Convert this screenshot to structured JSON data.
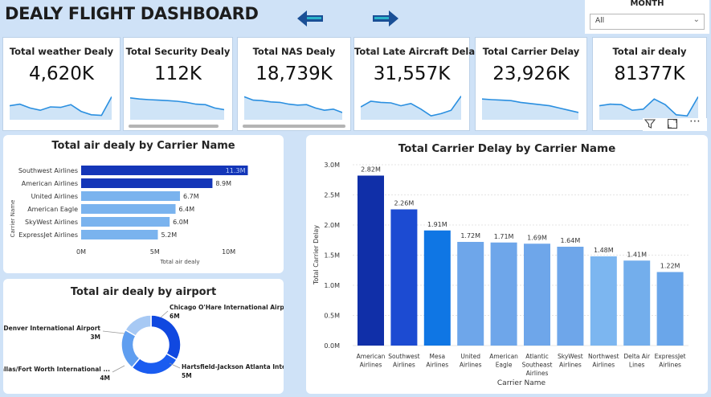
{
  "header": {
    "title": "DEALY FLIGHT DASHBOARD",
    "month_filter": {
      "label": "MONTH",
      "value": "All"
    }
  },
  "colors": {
    "arrow": "#1a4f96",
    "arrow_accent": "#2ab3c9",
    "sparkline": "#2a8fe0",
    "sparkline_fill": "#cfe4f7",
    "bar_dark": "#1436b8",
    "bar_light": "#7ab3ee"
  },
  "kpis": [
    {
      "title": "Total weather Dealy",
      "value": "4,620K",
      "spark": [
        0.55,
        0.62,
        0.45,
        0.35,
        0.5,
        0.48,
        0.6,
        0.3,
        0.15,
        0.12,
        0.95
      ]
    },
    {
      "title": "Total Security Dealy",
      "value": "112K",
      "spark": [
        0.9,
        0.85,
        0.82,
        0.8,
        0.78,
        0.75,
        0.7,
        0.62,
        0.6,
        0.45,
        0.38
      ]
    },
    {
      "title": "Total NAS Dealy",
      "value": "18,739K",
      "spark": [
        0.95,
        0.8,
        0.78,
        0.72,
        0.7,
        0.62,
        0.58,
        0.6,
        0.45,
        0.35,
        0.4,
        0.25
      ]
    },
    {
      "title": "Total Late Aircraft Delay",
      "value": "31,557K",
      "spark": [
        0.5,
        0.75,
        0.7,
        0.68,
        0.55,
        0.65,
        0.4,
        0.1,
        0.2,
        0.35,
        0.98
      ]
    },
    {
      "title": "Total Carrier Delay",
      "value": "23,926K",
      "spark": [
        0.85,
        0.82,
        0.8,
        0.78,
        0.7,
        0.65,
        0.6,
        0.55,
        0.45,
        0.35,
        0.25
      ]
    },
    {
      "title": "Total air dealy",
      "value": "81377K",
      "spark": [
        0.55,
        0.62,
        0.6,
        0.35,
        0.4,
        0.85,
        0.6,
        0.15,
        0.1,
        0.95
      ]
    }
  ],
  "chart_data": [
    {
      "type": "bar",
      "orientation": "horizontal",
      "title": "Total air dealy by Carrier Name",
      "xlabel": "Total air dealy",
      "ylabel": "Carrier Name",
      "categories": [
        "Southwest Airlines",
        "American Airlines",
        "United Airlines",
        "American Eagle",
        "SkyWest Airlines",
        "ExpressJet Airlines"
      ],
      "values": [
        11.3,
        8.9,
        6.7,
        6.4,
        6.0,
        5.2
      ],
      "value_labels": [
        "11.3M",
        "8.9M",
        "6.7M",
        "6.4M",
        "6.0M",
        "5.2M"
      ],
      "ticks": [
        0,
        5,
        10
      ],
      "tick_labels": [
        "0M",
        "5M",
        "10M"
      ],
      "xlim": [
        0,
        11.6
      ]
    },
    {
      "type": "pie",
      "donut": true,
      "title": "Total air dealy by airport",
      "labels": [
        "Chicago O'Hare International Airport",
        "Hartsfield-Jackson Atlanta Inter...",
        "Dallas/Fort Worth International ...",
        "Denver International Airport"
      ],
      "values": [
        6,
        5,
        4,
        3
      ],
      "value_labels": [
        "6M",
        "5M",
        "4M",
        "3M"
      ],
      "colors": [
        "#1048e0",
        "#1a5cf0",
        "#5f9ef0",
        "#a7c9f4"
      ]
    },
    {
      "type": "bar",
      "title": "Total Carrier Delay by Carrier Name",
      "xlabel": "Carrier Name",
      "ylabel": "Total Carrier Delay",
      "categories": [
        "American Airlines",
        "Southwest Airlines",
        "Mesa Airlines",
        "United Airlines",
        "American Eagle",
        "Atlantic Southeast Airlines",
        "SkyWest Airlines",
        "Northwest Airlines",
        "Delta Air Lines",
        "ExpressJet Airlines"
      ],
      "values": [
        2.82,
        2.26,
        1.91,
        1.72,
        1.71,
        1.69,
        1.64,
        1.48,
        1.41,
        1.22
      ],
      "value_labels": [
        "2.82M",
        "2.26M",
        "1.91M",
        "1.72M",
        "1.71M",
        "1.69M",
        "1.64M",
        "1.48M",
        "1.41M",
        "1.22M"
      ],
      "colors": [
        "#102fa8",
        "#1c4bd2",
        "#0f76e4",
        "#6ea6ea",
        "#6ea6ea",
        "#6ea6ea",
        "#6ea6ea",
        "#7cb6f0",
        "#73aeec",
        "#6aa6ea"
      ],
      "ticks": [
        0,
        0.5,
        1.0,
        1.5,
        2.0,
        2.5,
        3.0
      ],
      "tick_labels": [
        "0.0M",
        "0.5M",
        "1.0M",
        "1.5M",
        "2.0M",
        "2.5M",
        "3.0M"
      ],
      "ylim": [
        0,
        3.0
      ]
    }
  ]
}
